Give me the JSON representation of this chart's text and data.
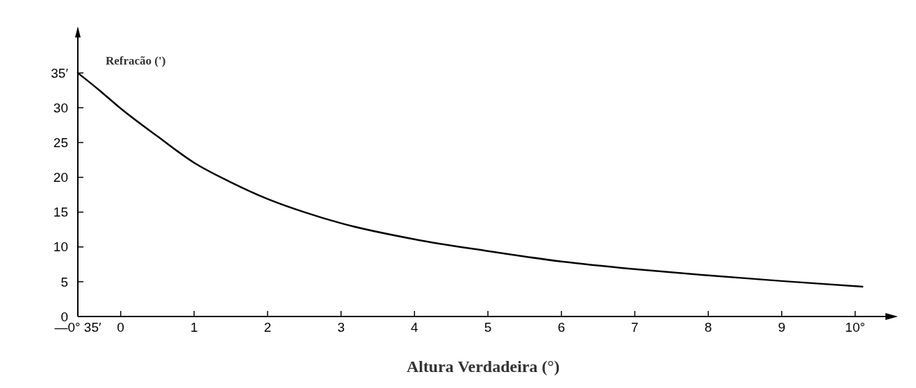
{
  "chart_data": {
    "type": "line",
    "xlabel": "Altura Verdadeira (°)",
    "ylabel": "Refracão (')",
    "xlim": [
      -0.5833,
      10.45
    ],
    "ylim": [
      0,
      40.5
    ],
    "xticks": [
      {
        "value": -0.5833,
        "label": "—0° 35′"
      },
      0,
      1,
      2,
      3,
      4,
      5,
      6,
      7,
      8,
      9,
      {
        "value": 10,
        "label": "10°"
      }
    ],
    "yticks": [
      0,
      5,
      10,
      15,
      20,
      25,
      30,
      {
        "value": 35,
        "label": "35′"
      }
    ],
    "grid": false,
    "marker": "none",
    "line_style": "solid",
    "series": [
      {
        "color": "#000000",
        "x": [
          -0.5833,
          -0.3,
          0,
          0.5,
          1,
          1.5,
          2,
          2.5,
          3,
          4,
          5,
          6,
          7,
          8,
          9,
          10.1
        ],
        "values": [
          35,
          32.6,
          29.9,
          25.9,
          22.1,
          19.3,
          16.9,
          15,
          13.4,
          11.1,
          9.4,
          7.9,
          6.8,
          5.9,
          5.1,
          4.3
        ]
      }
    ]
  }
}
